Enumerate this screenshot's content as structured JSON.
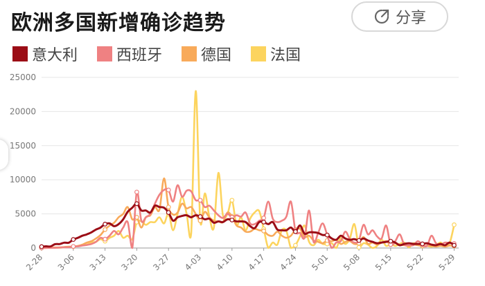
{
  "title": "欧洲多国新增确诊趋势",
  "share": {
    "label": "分享",
    "icon": "share-icon"
  },
  "colors": {
    "italy": "#9b0d16",
    "spain": "#ef8182",
    "germany": "#f8aa5a",
    "france": "#fcd45e",
    "grid": "#e5e5e5",
    "axis": "#999999"
  },
  "chart_data": {
    "type": "line",
    "title": "欧洲多国新增确诊趋势",
    "legend_position": "top-left",
    "grid": true,
    "x_range": [
      0,
      92
    ],
    "ylim": [
      0,
      25000
    ],
    "y_ticks": [
      0,
      5000,
      10000,
      15000,
      20000,
      25000
    ],
    "x_tick_labels": [
      {
        "label": "2-28",
        "day": 0
      },
      {
        "label": "3-06",
        "day": 7
      },
      {
        "label": "3-13",
        "day": 14
      },
      {
        "label": "3-20",
        "day": 21
      },
      {
        "label": "3-27",
        "day": 28
      },
      {
        "label": "4-03",
        "day": 35
      },
      {
        "label": "4-10",
        "day": 42
      },
      {
        "label": "4-17",
        "day": 49
      },
      {
        "label": "4-24",
        "day": 56
      },
      {
        "label": "5-01",
        "day": 63
      },
      {
        "label": "5-08",
        "day": 70
      },
      {
        "label": "5-15",
        "day": 77
      },
      {
        "label": "5-22",
        "day": 84
      },
      {
        "label": "5-29",
        "day": 91
      }
    ],
    "series": [
      {
        "name": "意大利",
        "key": "italy",
        "values": [
          200,
          250,
          230,
          570,
          580,
          780,
          780,
          1250,
          1490,
          1800,
          2000,
          2300,
          2700,
          3000,
          3500,
          3600,
          3200,
          3500,
          4200,
          5300,
          5900,
          6500,
          5500,
          5500,
          5200,
          6200,
          6000,
          5900,
          5200,
          4000,
          4500,
          4700,
          4800,
          4500,
          4800,
          4600,
          4200,
          4300,
          3700,
          3900,
          3800,
          4200,
          4100,
          3900,
          3900,
          3800,
          3200,
          2900,
          3800,
          3800,
          3500,
          3800,
          2700,
          2600,
          2600,
          3000,
          2400,
          3300,
          2100,
          2300,
          2300,
          2200,
          1900,
          1900,
          1400,
          1200,
          1800,
          1400,
          1200,
          1300,
          1100,
          1400,
          1100,
          900,
          700,
          800,
          900,
          1000,
          800,
          400,
          600,
          700,
          600,
          600,
          600,
          700,
          500,
          400,
          600,
          400,
          800,
          400
        ]
      },
      {
        "name": "西班牙",
        "key": "spain",
        "values": [
          10,
          10,
          20,
          20,
          70,
          100,
          110,
          230,
          240,
          350,
          450,
          600,
          900,
          1500,
          1300,
          1800,
          2500,
          2000,
          3000,
          3800,
          0,
          8200,
          4000,
          4500,
          5000,
          6500,
          7800,
          8500,
          8500,
          6800,
          9200,
          7500,
          8400,
          8300,
          7000,
          7000,
          6000,
          6200,
          5500,
          4800,
          4400,
          5000,
          4500,
          4800,
          4600,
          5200,
          3600,
          3500,
          4000,
          4400,
          6800,
          4300,
          3800,
          4000,
          4600,
          6800,
          2500,
          2200,
          1500,
          5500,
          900,
          2200,
          3600,
          1900,
          0,
          800,
          1000,
          2400,
          1300,
          800,
          1100,
          3400,
          2000,
          2600,
          1700,
          1400,
          3300,
          500,
          1000,
          2000,
          500,
          400,
          400,
          1000,
          500,
          300,
          1800,
          700,
          500,
          800,
          700,
          650
        ]
      },
      {
        "name": "德国",
        "key": "germany",
        "values": [
          20,
          30,
          50,
          80,
          90,
          140,
          190,
          200,
          300,
          500,
          800,
          1000,
          1400,
          1900,
          2700,
          3300,
          3700,
          4500,
          5000,
          6000,
          4200,
          4500,
          3000,
          4500,
          4800,
          6000,
          5600,
          10200,
          6000,
          4900,
          5200,
          6500,
          5800,
          6000,
          5000,
          4000,
          5300,
          4500,
          4000,
          3900,
          3800,
          5200,
          4600,
          3300,
          3000,
          2400,
          2400,
          2800,
          2600,
          2500,
          1900,
          1800,
          2400,
          1800,
          1500,
          1800,
          2700,
          2800,
          1600,
          1800,
          1100,
          900,
          700,
          1100,
          1000,
          1200,
          600,
          900,
          1000,
          600,
          700,
          1600,
          600,
          800,
          500,
          800,
          1000,
          500,
          700,
          500,
          400,
          300,
          500,
          400,
          300,
          300,
          300,
          200,
          300,
          200,
          350,
          300
        ]
      },
      {
        "name": "法国",
        "key": "france",
        "values": [
          10,
          30,
          20,
          30,
          40,
          100,
          150,
          200,
          300,
          400,
          500,
          800,
          900,
          1300,
          1000,
          1500,
          1800,
          2500,
          1500,
          1800,
          1300,
          3800,
          3900,
          3400,
          3800,
          3800,
          4500,
          3600,
          5000,
          2600,
          5000,
          7500,
          5000,
          2100,
          23000,
          4000,
          8000,
          4600,
          3000,
          11000,
          4800,
          5000,
          7000,
          3400,
          4500,
          2600,
          4300,
          5200,
          5400,
          2800,
          0,
          800,
          500,
          2600,
          2500,
          0,
          400,
          1700,
          3300,
          900,
          400,
          1200,
          600,
          600,
          700,
          0,
          1500,
          600,
          1400,
          3500,
          100,
          700,
          500,
          0,
          300,
          1200,
          300,
          600,
          300,
          600,
          800,
          100,
          700,
          600,
          300,
          300,
          200,
          400,
          800,
          300,
          700,
          3400
        ]
      }
    ]
  }
}
